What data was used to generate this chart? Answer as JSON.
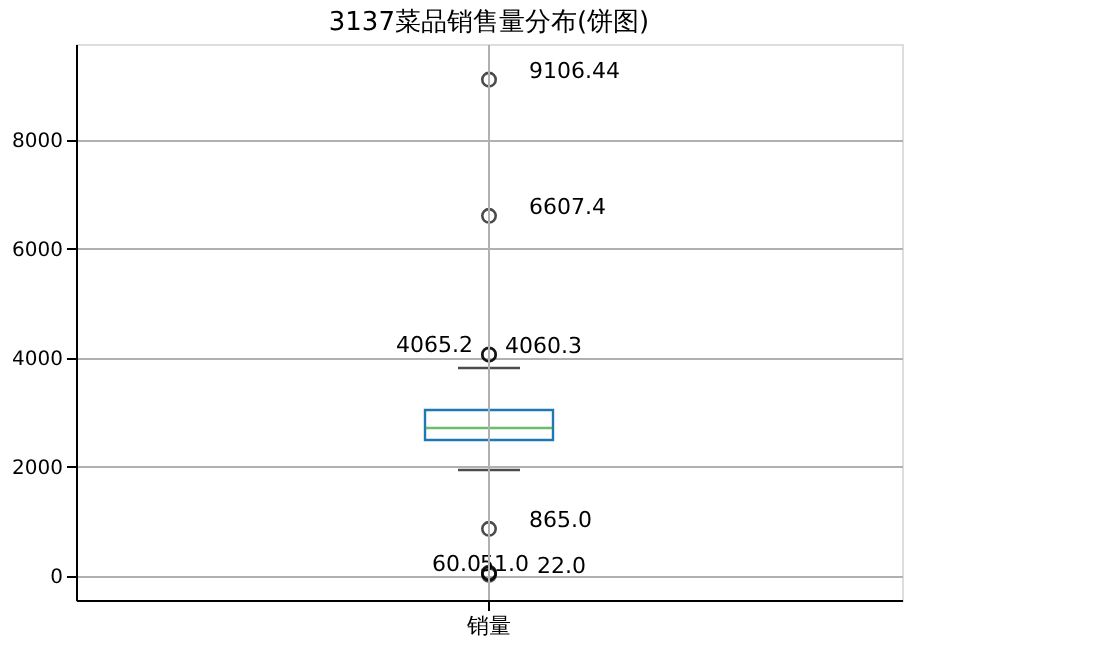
{
  "chart_data": {
    "type": "box",
    "title": "3137菜品销售量分布(饼图)",
    "categories": [
      "销量"
    ],
    "boxes": [
      {
        "low": 1945,
        "q1": 2495,
        "median": 2716,
        "q3": 3046,
        "high": 3816
      }
    ],
    "series": [
      {
        "type": "scatter",
        "color": "#000000",
        "marker": "circle",
        "x": [
          "销量",
          "销量",
          "销量",
          "销量",
          "销量",
          "销量",
          "销量",
          "销量"
        ],
        "values": [
          9106.44,
          6607.4,
          4065.2,
          4060.3,
          865.0,
          60.0,
          51.0,
          22.0
        ],
        "value_labels": [
          "9106.44",
          "6607.4",
          "4065.2",
          "4060.3",
          "865.0",
          "60.0",
          "51.0",
          "22.0"
        ]
      }
    ],
    "ylim": [
      -440,
      9760
    ],
    "yticks": [
      0,
      2000,
      4000,
      6000,
      8000
    ],
    "grid": true
  }
}
